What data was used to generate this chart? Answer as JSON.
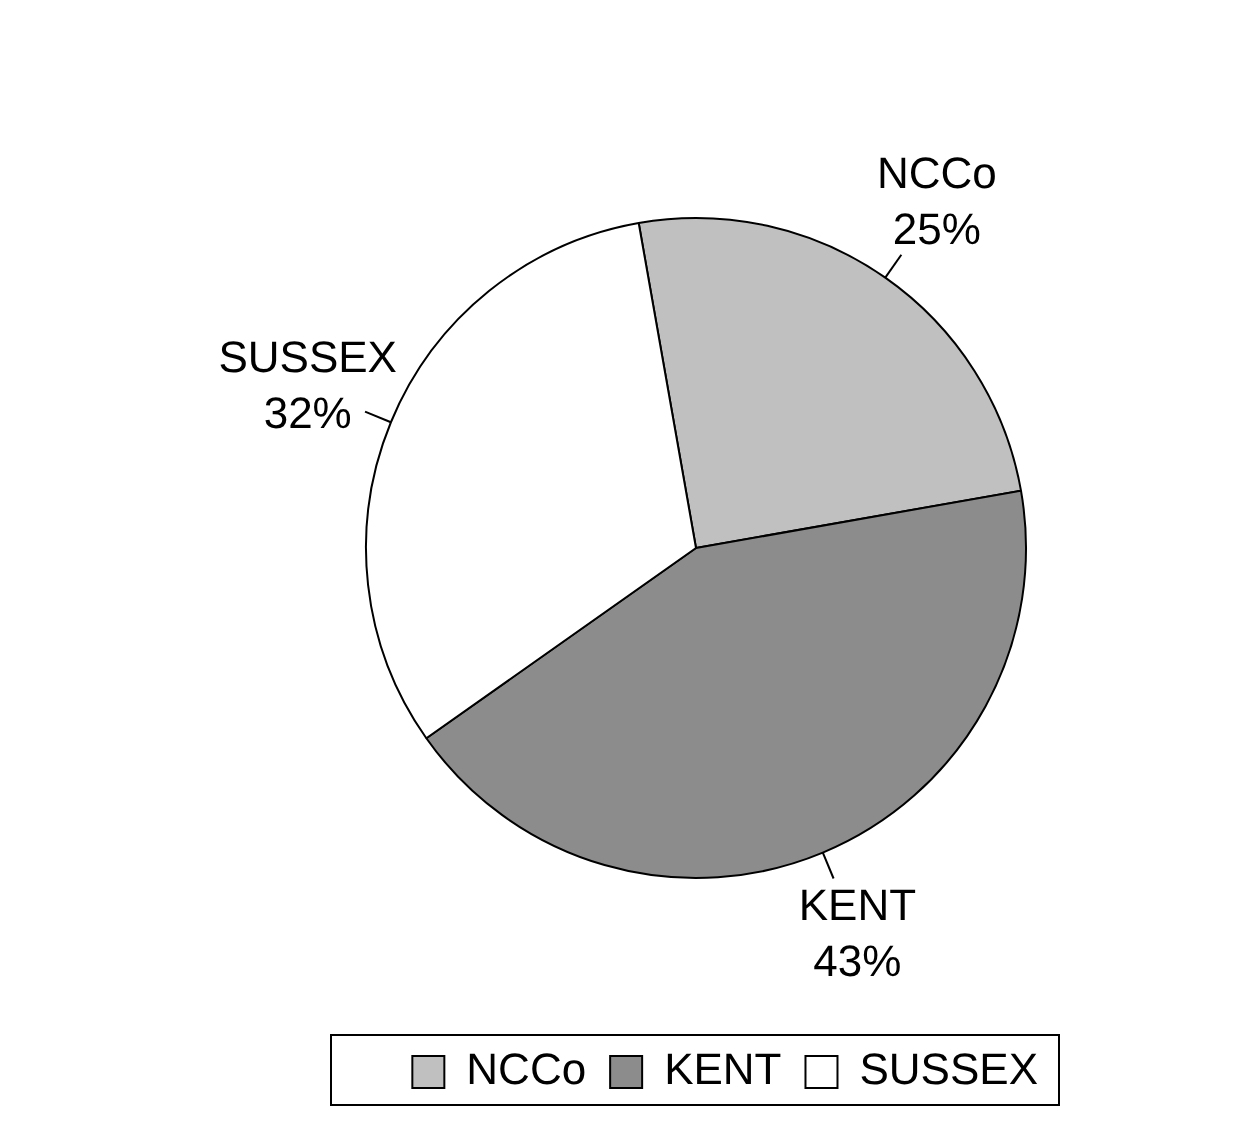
{
  "chart_data": {
    "type": "pie",
    "categories": [
      "NCCo",
      "KENT",
      "SUSSEX"
    ],
    "values": [
      25,
      43,
      32
    ],
    "value_labels": [
      "25%",
      "43%",
      "32%"
    ],
    "colors": [
      "#c0c0c0",
      "#8c8c8c",
      "#ffffff"
    ],
    "legend": "bottom"
  }
}
